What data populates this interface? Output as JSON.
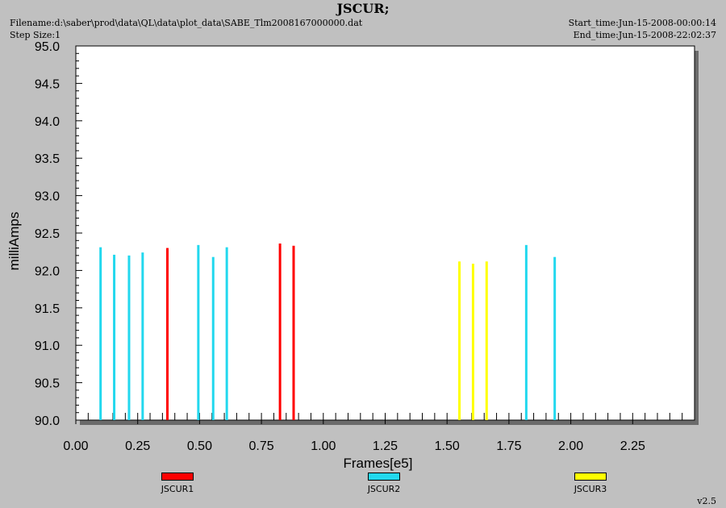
{
  "header": {
    "title": "JSCUR;",
    "filename": "Filename:d:\\saber\\prod\\data\\QL\\data\\plot_data\\SABE_Tlm2008167000000.dat",
    "step_size": "Step Size:1",
    "start_time": "Start_time:Jun-15-2008-00:00:14",
    "end_time": "End_time:Jun-15-2008-22:02:37"
  },
  "version": "v2.5",
  "chart_data": {
    "type": "bar",
    "title": "JSCUR;",
    "xlabel": "Frames[e5]",
    "ylabel": "milliAmps",
    "xlim": [
      0.0,
      2.5
    ],
    "ylim": [
      90.0,
      95.0
    ],
    "x_ticks": [
      "0.00",
      "0.25",
      "0.50",
      "0.75",
      "1.00",
      "1.25",
      "1.50",
      "1.75",
      "2.00",
      "2.25"
    ],
    "y_ticks": [
      "90.0",
      "90.5",
      "91.0",
      "91.5",
      "92.0",
      "92.5",
      "93.0",
      "93.5",
      "94.0",
      "94.5",
      "95.0"
    ],
    "grid": false,
    "legend_position": "bottom",
    "series": [
      {
        "name": "JSCUR1",
        "color": "#ff0000",
        "points": [
          [
            0.37,
            92.3
          ],
          [
            0.825,
            92.36
          ],
          [
            0.88,
            92.33
          ]
        ]
      },
      {
        "name": "JSCUR2",
        "color": "#22d8ee",
        "points": [
          [
            0.1,
            92.31
          ],
          [
            0.155,
            92.21
          ],
          [
            0.215,
            92.2
          ],
          [
            0.27,
            92.24
          ],
          [
            0.495,
            92.34
          ],
          [
            0.555,
            92.18
          ],
          [
            0.61,
            92.31
          ],
          [
            1.82,
            92.34
          ],
          [
            1.935,
            92.18
          ]
        ]
      },
      {
        "name": "JSCUR3",
        "color": "#ffff00",
        "points": [
          [
            1.55,
            92.12
          ],
          [
            1.605,
            92.09
          ],
          [
            1.66,
            92.12
          ]
        ]
      }
    ]
  }
}
